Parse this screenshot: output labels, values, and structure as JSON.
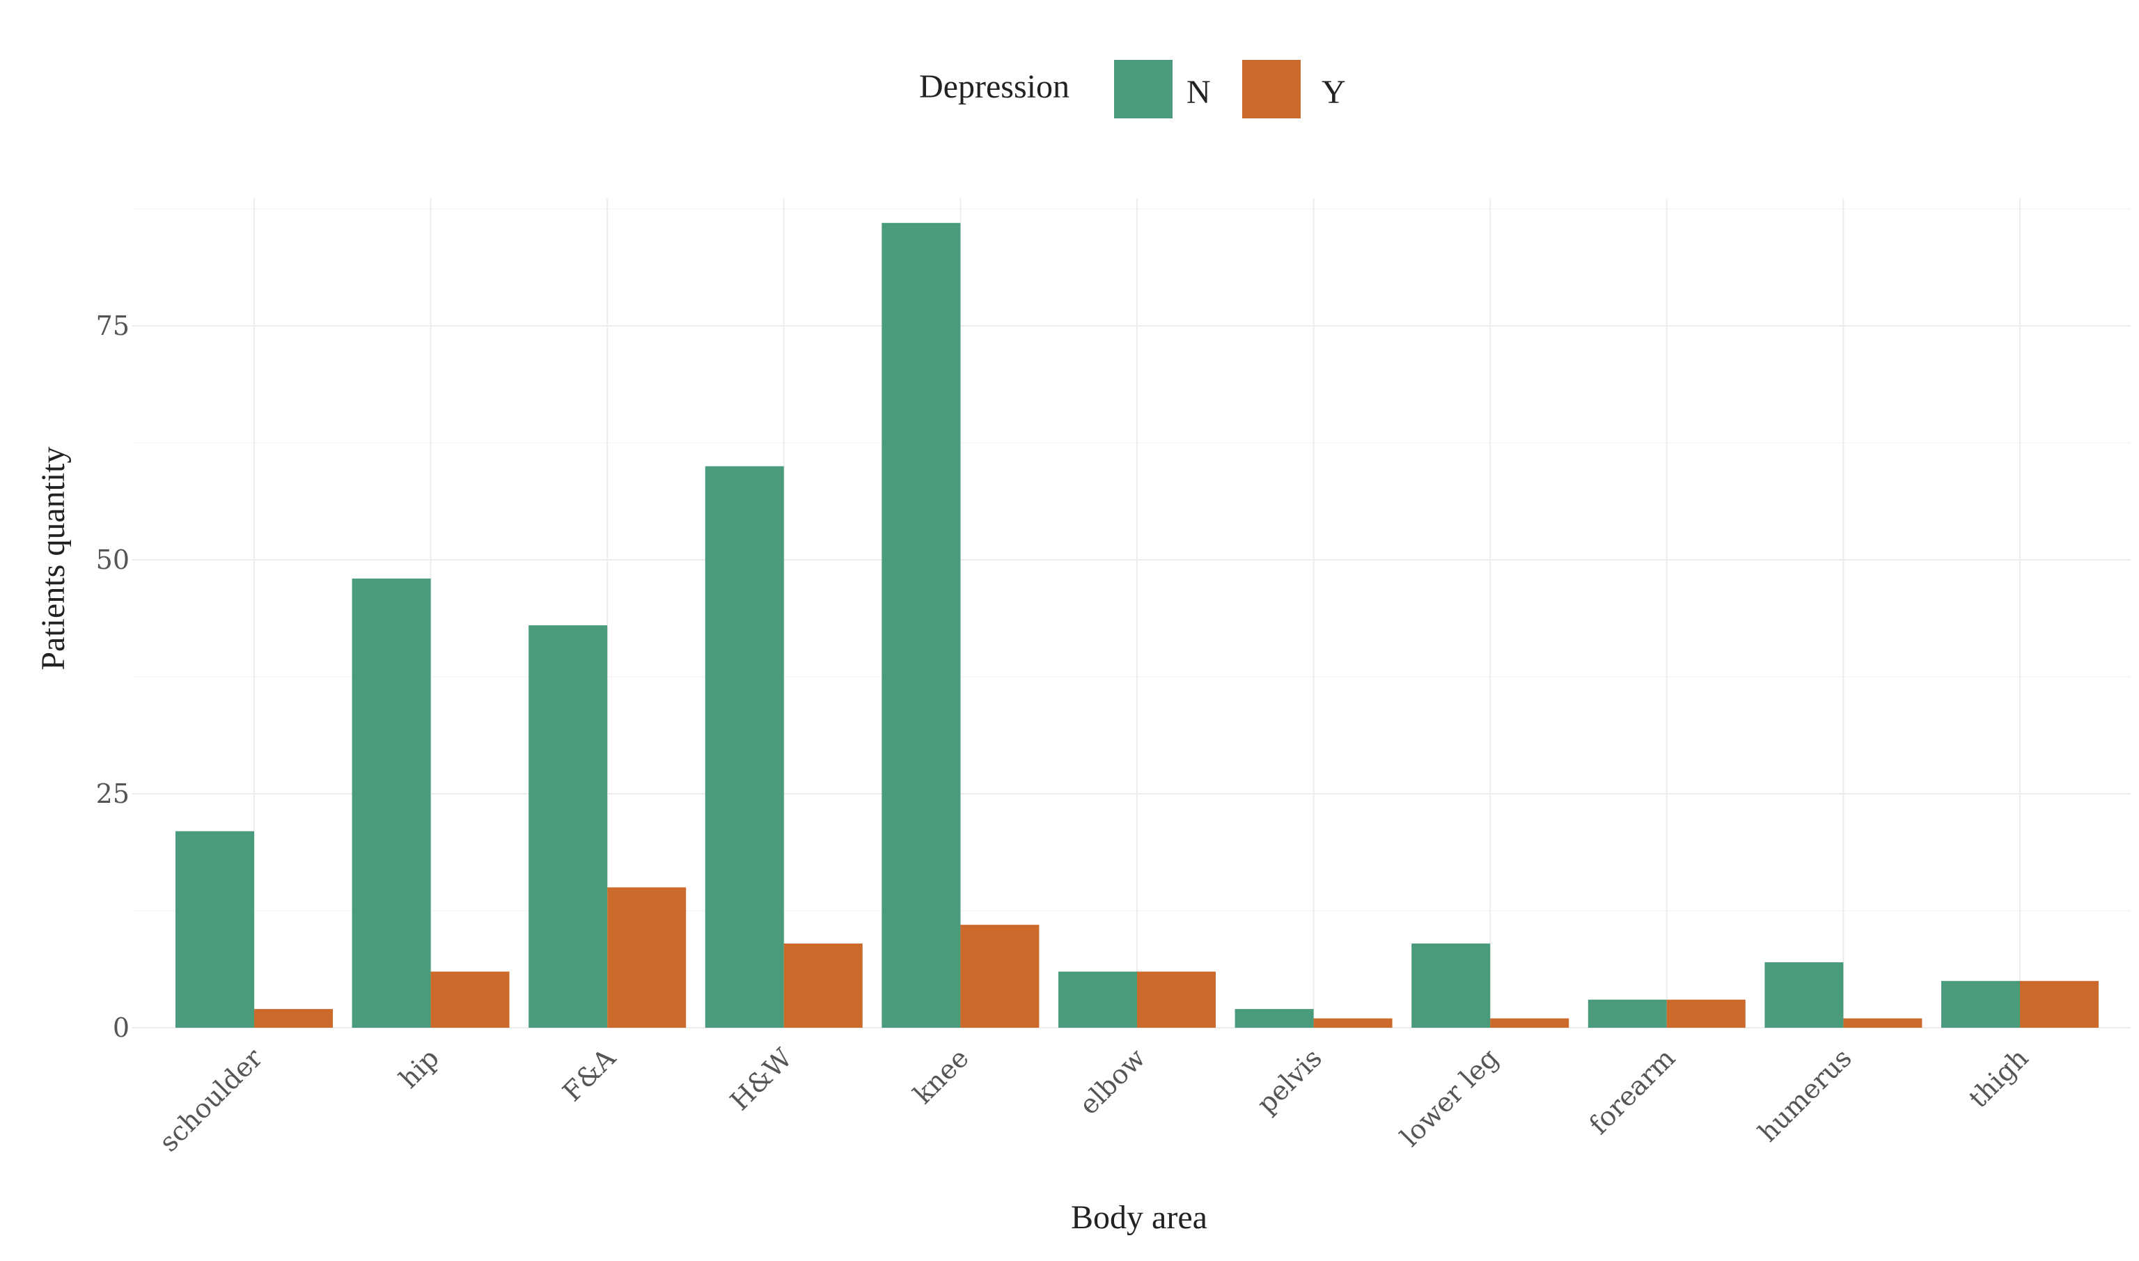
{
  "chart_data": {
    "type": "bar",
    "categories": [
      "schoulder",
      "hip",
      "F&A",
      "H&W",
      "knee",
      "elbow",
      "pelvis",
      "lower leg",
      "forearm",
      "humerus",
      "thigh"
    ],
    "series": [
      {
        "name": "N",
        "values": [
          21,
          48,
          43,
          60,
          86,
          6,
          2,
          9,
          3,
          7,
          5
        ]
      },
      {
        "name": "Y",
        "values": [
          2,
          6,
          15,
          9,
          11,
          6,
          1,
          1,
          3,
          1,
          5
        ]
      }
    ],
    "xlabel": "Body area",
    "ylabel": "Patients quantity",
    "ylim": [
      0,
      88
    ],
    "yticks": [
      0,
      25,
      50,
      75
    ],
    "legend": {
      "title": "Depression",
      "position": "top"
    },
    "colors": {
      "N": "#4a9b7b",
      "Y": "#cc6a2c"
    },
    "grid": true
  }
}
